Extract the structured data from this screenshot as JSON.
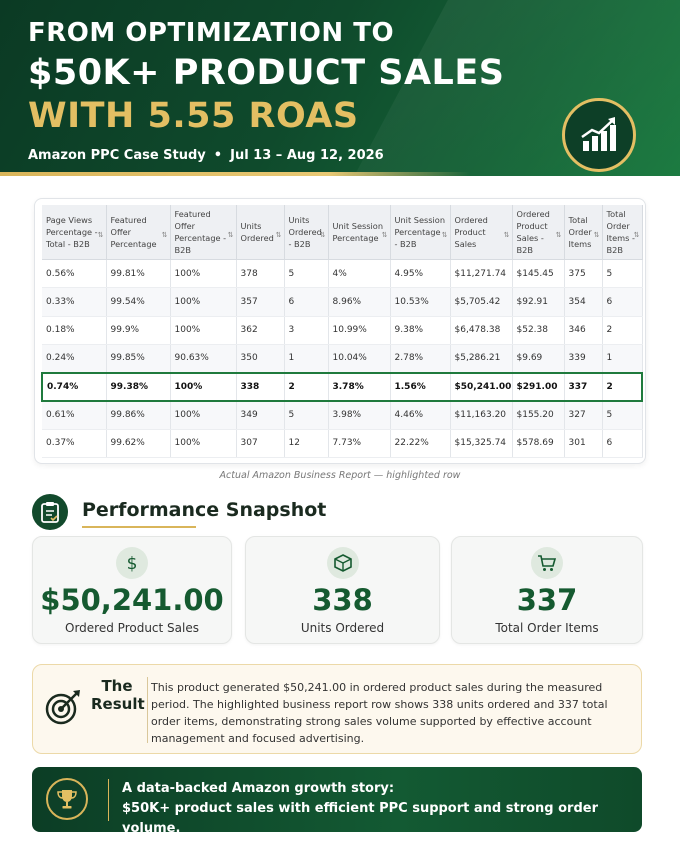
{
  "header": {
    "line1": "FROM OPTIMIZATION TO",
    "line2": "$50K+ PRODUCT SALES",
    "line3": "WITH 5.55 ROAS",
    "subtitle_left": "Amazon PPC Case Study",
    "subtitle_sep": "•",
    "subtitle_right": "Jul 13 – Aug 12, 2026",
    "badge_icon": "growth-chart-icon",
    "accent_gold": "#e3bf63",
    "brand_green": "#0f4a2c"
  },
  "report": {
    "columns": [
      "Page Views Percentage - Total - B2B",
      "Featured Offer Percentage",
      "Featured Offer Percentage - B2B",
      "Units Ordered",
      "Units Ordered - B2B",
      "Unit Session Percentage",
      "Unit Session Percentage - B2B",
      "Ordered Product Sales",
      "Ordered Product Sales - B2B",
      "Total Order Items",
      "Total Order Items - B2B"
    ],
    "rows": [
      [
        "0.56%",
        "99.81%",
        "100%",
        "378",
        "5",
        "4%",
        "4.95%",
        "$11,271.74",
        "$145.45",
        "375",
        "5"
      ],
      [
        "0.33%",
        "99.54%",
        "100%",
        "357",
        "6",
        "8.96%",
        "10.53%",
        "$5,705.42",
        "$92.91",
        "354",
        "6"
      ],
      [
        "0.18%",
        "99.9%",
        "100%",
        "362",
        "3",
        "10.99%",
        "9.38%",
        "$6,478.38",
        "$52.38",
        "346",
        "2"
      ],
      [
        "0.24%",
        "99.85%",
        "90.63%",
        "350",
        "1",
        "10.04%",
        "2.78%",
        "$5,286.21",
        "$9.69",
        "339",
        "1"
      ],
      [
        "0.74%",
        "99.38%",
        "100%",
        "338",
        "2",
        "3.78%",
        "1.56%",
        "$50,241.00",
        "$291.00",
        "337",
        "2"
      ],
      [
        "0.61%",
        "99.86%",
        "100%",
        "349",
        "5",
        "3.98%",
        "4.46%",
        "$11,163.20",
        "$155.20",
        "327",
        "5"
      ],
      [
        "0.37%",
        "99.62%",
        "100%",
        "307",
        "12",
        "7.73%",
        "22.22%",
        "$15,325.74",
        "$578.69",
        "301",
        "6"
      ]
    ],
    "highlighted_row_index": 4,
    "caption": "Actual Amazon Business Report — highlighted row"
  },
  "snapshot": {
    "title": "Performance Snapshot",
    "icon": "clipboard-icon",
    "cards": [
      {
        "icon": "dollar-icon",
        "value": "$50,241.00",
        "label": "Ordered Product Sales"
      },
      {
        "icon": "box-icon",
        "value": "338",
        "label": "Units Ordered"
      },
      {
        "icon": "cart-icon",
        "value": "337",
        "label": "Total Order Items"
      }
    ]
  },
  "result": {
    "heading_line1": "The",
    "heading_line2": "Result",
    "icon": "target-icon",
    "text": "This product generated $50,241.00 in ordered product sales during the measured period. The highlighted business report row shows 338 units ordered and 337 total order items, demonstrating strong sales volume supported by effective account management and focused advertising."
  },
  "banner": {
    "icon": "trophy-icon",
    "line1": "A data-backed Amazon growth story:",
    "line2": "$50K+ product sales with efficient PPC support and strong order volume."
  }
}
